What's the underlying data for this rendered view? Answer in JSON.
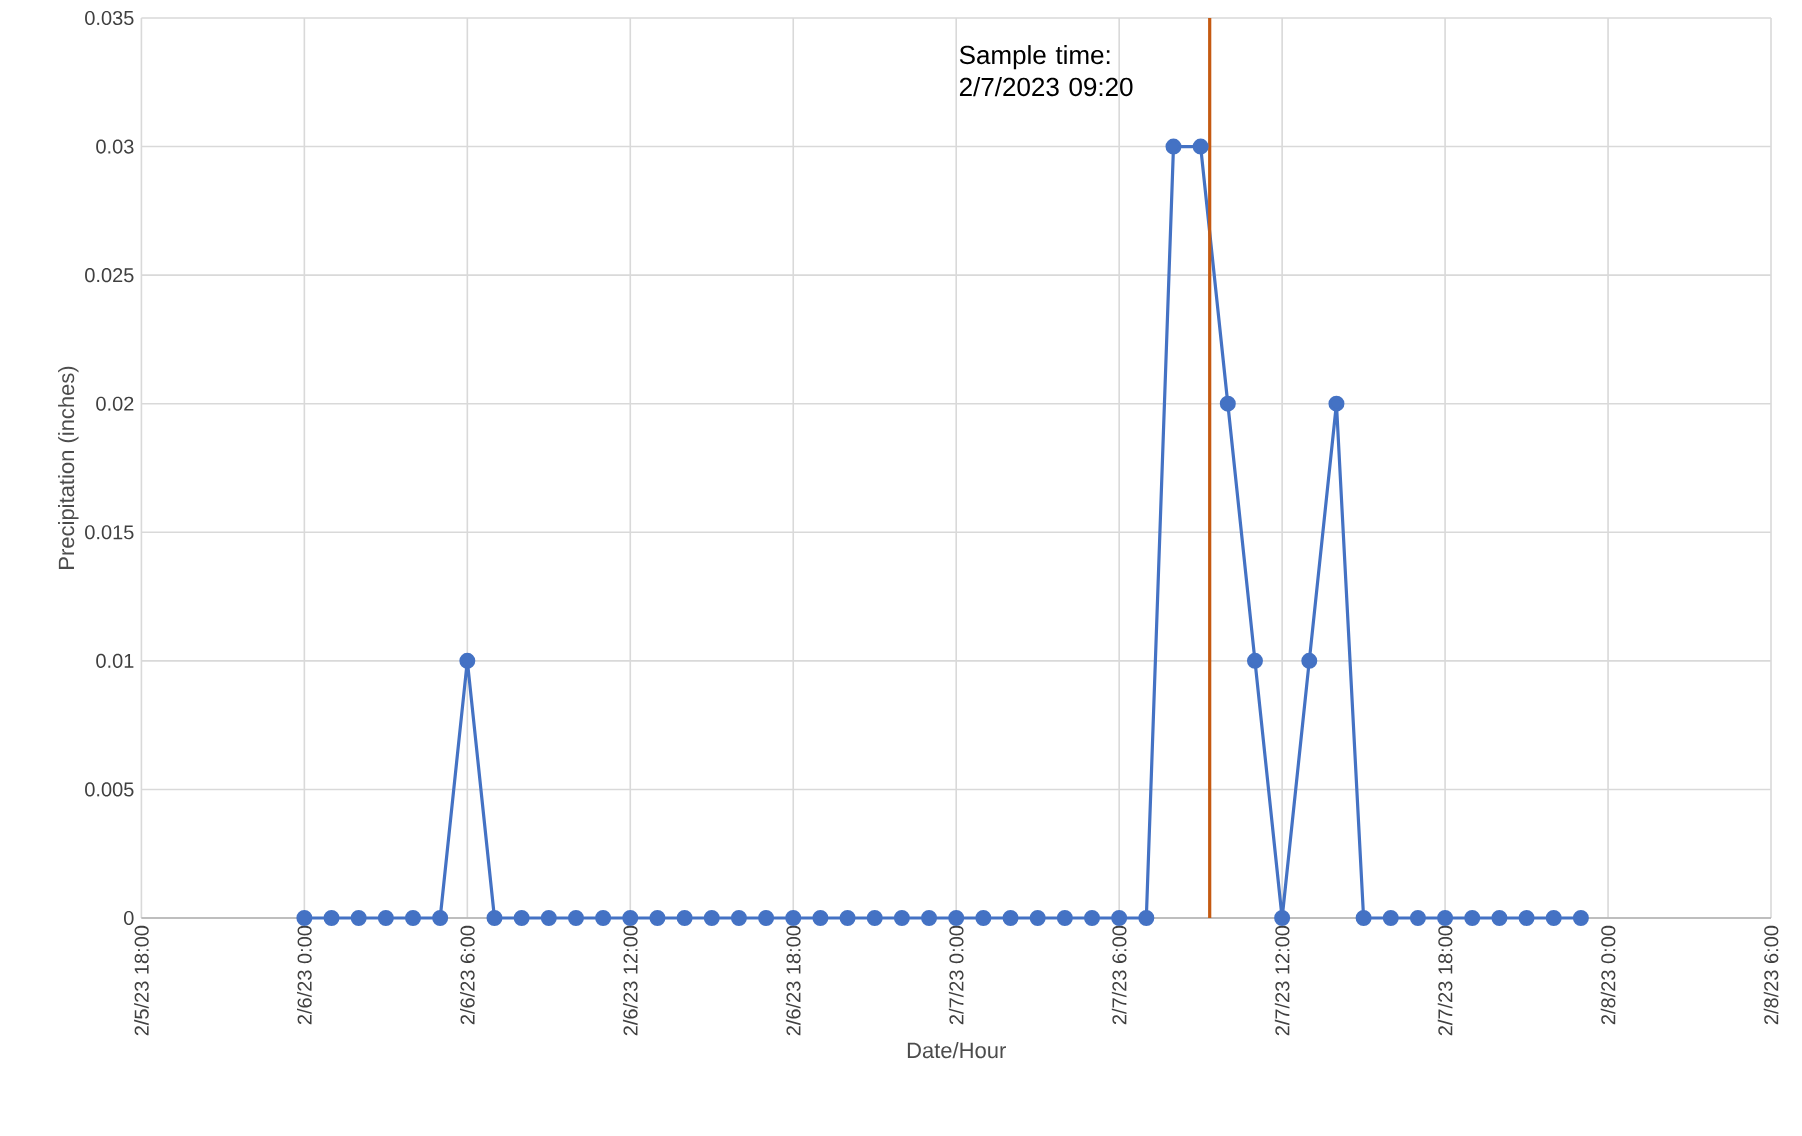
{
  "chart_data": {
    "type": "line",
    "xlabel": "Date/Hour",
    "ylabel": "Precipitation (inches)",
    "x": [
      "2023-02-06T00:00",
      "2023-02-06T01:00",
      "2023-02-06T02:00",
      "2023-02-06T03:00",
      "2023-02-06T04:00",
      "2023-02-06T05:00",
      "2023-02-06T06:00",
      "2023-02-06T07:00",
      "2023-02-06T08:00",
      "2023-02-06T09:00",
      "2023-02-06T10:00",
      "2023-02-06T11:00",
      "2023-02-06T12:00",
      "2023-02-06T13:00",
      "2023-02-06T14:00",
      "2023-02-06T15:00",
      "2023-02-06T16:00",
      "2023-02-06T17:00",
      "2023-02-06T18:00",
      "2023-02-06T19:00",
      "2023-02-06T20:00",
      "2023-02-06T21:00",
      "2023-02-06T22:00",
      "2023-02-06T23:00",
      "2023-02-07T00:00",
      "2023-02-07T01:00",
      "2023-02-07T02:00",
      "2023-02-07T03:00",
      "2023-02-07T04:00",
      "2023-02-07T05:00",
      "2023-02-07T06:00",
      "2023-02-07T07:00",
      "2023-02-07T08:00",
      "2023-02-07T09:00",
      "2023-02-07T10:00",
      "2023-02-07T11:00",
      "2023-02-07T12:00",
      "2023-02-07T13:00",
      "2023-02-07T14:00",
      "2023-02-07T15:00",
      "2023-02-07T16:00",
      "2023-02-07T17:00",
      "2023-02-07T18:00",
      "2023-02-07T19:00",
      "2023-02-07T20:00",
      "2023-02-07T21:00",
      "2023-02-07T22:00",
      "2023-02-07T23:00"
    ],
    "series": [
      {
        "color": "#4472c4",
        "values": [
          0,
          0,
          0,
          0,
          0,
          0,
          0.01,
          0,
          0,
          0,
          0,
          0,
          0,
          0,
          0,
          0,
          0,
          0,
          0,
          0,
          0,
          0,
          0,
          0,
          0,
          0,
          0,
          0,
          0,
          0,
          0,
          0,
          0.03,
          0.03,
          0.02,
          0.01,
          0,
          0.01,
          0.02,
          0,
          0,
          0,
          0,
          0,
          0,
          0,
          0,
          0
        ]
      }
    ],
    "xlim": [
      "2023-02-05T18:00",
      "2023-02-08T06:00"
    ],
    "xticks": [
      {
        "value": "2023-02-05T18:00",
        "label": "2/5/23 18:00"
      },
      {
        "value": "2023-02-06T00:00",
        "label": "2/6/23 0:00"
      },
      {
        "value": "2023-02-06T06:00",
        "label": "2/6/23 6:00"
      },
      {
        "value": "2023-02-06T12:00",
        "label": "2/6/23 12:00"
      },
      {
        "value": "2023-02-06T18:00",
        "label": "2/6/23 18:00"
      },
      {
        "value": "2023-02-07T00:00",
        "label": "2/7/23 0:00"
      },
      {
        "value": "2023-02-07T06:00",
        "label": "2/7/23 6:00"
      },
      {
        "value": "2023-02-07T12:00",
        "label": "2/7/23 12:00"
      },
      {
        "value": "2023-02-07T18:00",
        "label": "2/7/23 18:00"
      },
      {
        "value": "2023-02-08T00:00",
        "label": "2/8/23 0:00"
      },
      {
        "value": "2023-02-08T06:00",
        "label": "2/8/23 6:00"
      }
    ],
    "ylim": [
      0,
      0.035
    ],
    "yticks": [
      0,
      0.005,
      0.01,
      0.015,
      0.02,
      0.025,
      0.03,
      0.035
    ],
    "ref_lines": [
      {
        "axis": "x",
        "value": "2023-02-07T09:20",
        "label": "Sample time: 2/7/2023 09:20",
        "color": "#c55a11"
      }
    ],
    "grid": true,
    "marker": "circle",
    "line_style": "solid"
  }
}
